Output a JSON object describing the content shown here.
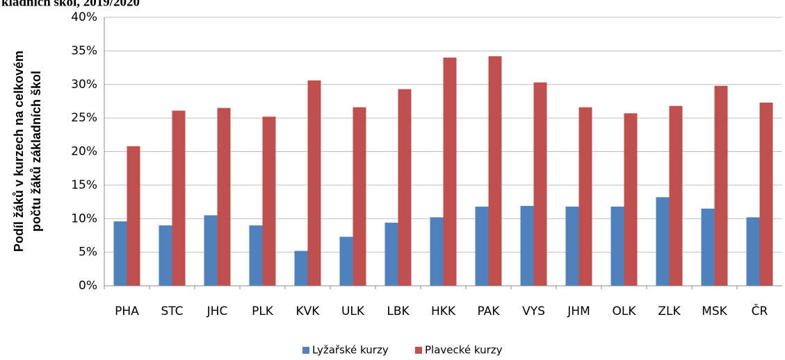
{
  "chart_data": {
    "type": "bar",
    "title": "kladních škol, 2019/2020",
    "y_label": [
      "Podíl žáků v kurzech na celkovém",
      "počtu žáků základních škol"
    ],
    "categories": [
      "PHA",
      "STC",
      "JHC",
      "PLK",
      "KVK",
      "ULK",
      "LBK",
      "HKK",
      "PAK",
      "VYS",
      "JHM",
      "OLK",
      "ZLK",
      "MSK",
      "ČR"
    ],
    "series": [
      {
        "name": "Lyžařské kurzy",
        "color": "#4f81bd",
        "values": [
          9.6,
          9.0,
          10.5,
          9.0,
          5.2,
          7.3,
          9.4,
          10.2,
          11.8,
          11.9,
          11.8,
          11.8,
          13.2,
          11.5,
          10.2
        ]
      },
      {
        "name": "Plavecké kurzy",
        "color": "#c0504d",
        "values": [
          20.8,
          26.1,
          26.5,
          25.2,
          30.6,
          26.6,
          29.3,
          34.0,
          34.2,
          30.3,
          26.6,
          25.7,
          26.8,
          29.8,
          27.3
        ]
      }
    ],
    "ylim": [
      0,
      40
    ],
    "yticks": [
      {
        "value": 0,
        "label": "0%"
      },
      {
        "value": 5,
        "label": "5%"
      },
      {
        "value": 10,
        "label": "10%"
      },
      {
        "value": 15,
        "label": "15%"
      },
      {
        "value": 20,
        "label": "20%"
      },
      {
        "value": 25,
        "label": "25%"
      },
      {
        "value": 30,
        "label": "30%"
      },
      {
        "value": 35,
        "label": "35%"
      },
      {
        "value": 40,
        "label": "40%"
      }
    ],
    "grid": true,
    "legend": "bottom"
  }
}
